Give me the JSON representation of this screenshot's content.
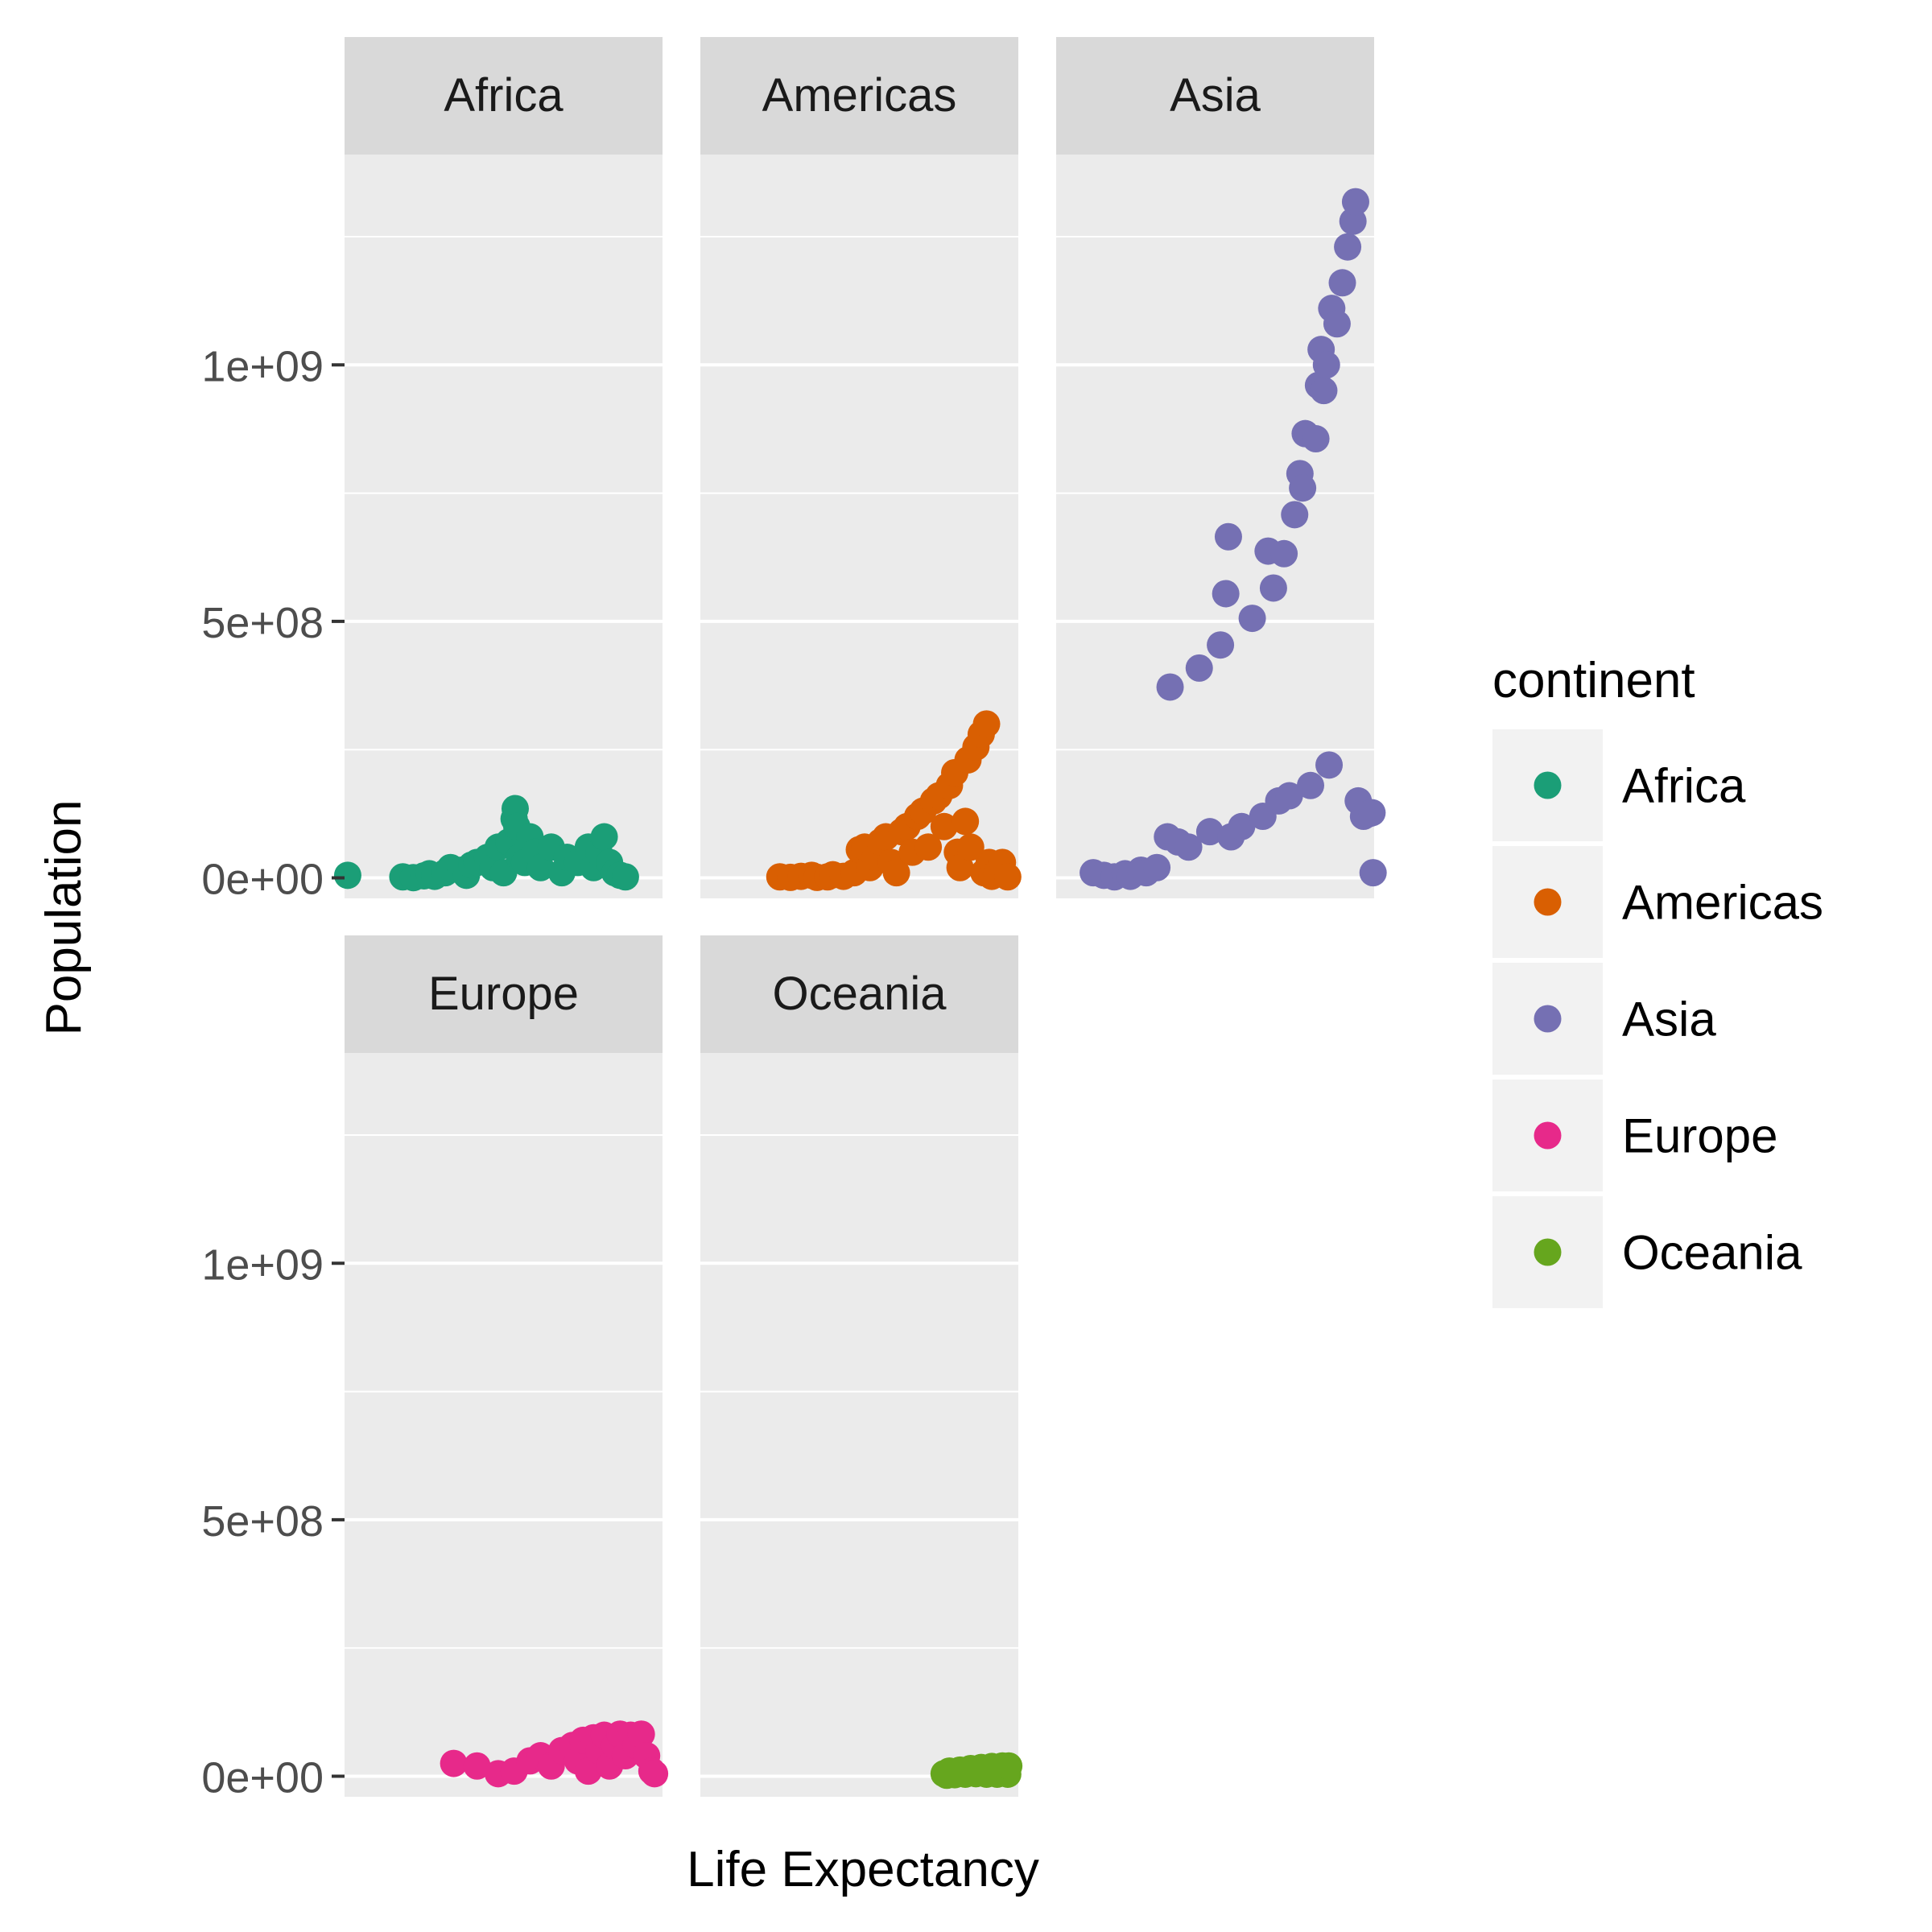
{
  "chart_data": {
    "type": "scatter",
    "xlabel": "Life Expectancy",
    "ylabel": "Population",
    "ylim": [
      -40000000,
      1410000000
    ],
    "xlim": [
      23,
      83
    ],
    "y_ticks": [
      {
        "value": 0,
        "label": "0e+00"
      },
      {
        "value": 500000000,
        "label": "5e+08"
      },
      {
        "value": 1000000000,
        "label": "1e+09"
      }
    ],
    "x_ticks_shown": false,
    "grid": true,
    "facets": [
      "Africa",
      "Americas",
      "Asia",
      "Europe",
      "Oceania"
    ],
    "legend": {
      "title": "continent",
      "placement": "right",
      "entries": [
        {
          "name": "Africa",
          "color": "#1B9E77"
        },
        {
          "name": "Americas",
          "color": "#D95F02"
        },
        {
          "name": "Asia",
          "color": "#7570B3"
        },
        {
          "name": "Europe",
          "color": "#E7298A"
        },
        {
          "name": "Oceania",
          "color": "#66A61E"
        }
      ]
    },
    "series": [
      {
        "name": "Africa",
        "color": "#1B9E77",
        "points": [
          [
            23.6,
            5000000
          ],
          [
            34,
            2000000
          ],
          [
            36,
            500000
          ],
          [
            38,
            4000000
          ],
          [
            39,
            8000000
          ],
          [
            40,
            3000000
          ],
          [
            42,
            10000000
          ],
          [
            43,
            20000000
          ],
          [
            45,
            15000000
          ],
          [
            46,
            5000000
          ],
          [
            47,
            25000000
          ],
          [
            48,
            30000000
          ],
          [
            50,
            40000000
          ],
          [
            51,
            20000000
          ],
          [
            52,
            60000000
          ],
          [
            53,
            10000000
          ],
          [
            54,
            70000000
          ],
          [
            55,
            115000000
          ],
          [
            55.2,
            135000000
          ],
          [
            55.5,
            100000000
          ],
          [
            56,
            40000000
          ],
          [
            57,
            30000000
          ],
          [
            58,
            80000000
          ],
          [
            59,
            50000000
          ],
          [
            60,
            20000000
          ],
          [
            62,
            60000000
          ],
          [
            64,
            10000000
          ],
          [
            65,
            40000000
          ],
          [
            67,
            30000000
          ],
          [
            69,
            60000000
          ],
          [
            70,
            20000000
          ],
          [
            71,
            50000000
          ],
          [
            72,
            80000000
          ],
          [
            73,
            30000000
          ],
          [
            74,
            10000000
          ],
          [
            75,
            5000000
          ],
          [
            76,
            2000000
          ]
        ]
      },
      {
        "name": "Americas",
        "color": "#D95F02",
        "points": [
          [
            38,
            2000000
          ],
          [
            40,
            1000000
          ],
          [
            42,
            3000000
          ],
          [
            44,
            5000000
          ],
          [
            45,
            1000000
          ],
          [
            47,
            2000000
          ],
          [
            48,
            6000000
          ],
          [
            50,
            3000000
          ],
          [
            52,
            10000000
          ],
          [
            53,
            55000000
          ],
          [
            54,
            60000000
          ],
          [
            55,
            20000000
          ],
          [
            56,
            40000000
          ],
          [
            57,
            70000000
          ],
          [
            58,
            80000000
          ],
          [
            59,
            30000000
          ],
          [
            60,
            10000000
          ],
          [
            61,
            90000000
          ],
          [
            62,
            100000000
          ],
          [
            63,
            50000000
          ],
          [
            64,
            120000000
          ],
          [
            65,
            130000000
          ],
          [
            66,
            60000000
          ],
          [
            67,
            150000000
          ],
          [
            68,
            160000000
          ],
          [
            69,
            100000000
          ],
          [
            70,
            180000000
          ],
          [
            71,
            205000000
          ],
          [
            71.5,
            50000000
          ],
          [
            72,
            20000000
          ],
          [
            73,
            110000000
          ],
          [
            73.5,
            230000000
          ],
          [
            74,
            60000000
          ],
          [
            75,
            255000000
          ],
          [
            76,
            280000000
          ],
          [
            76.5,
            10000000
          ],
          [
            77,
            300000000
          ],
          [
            77.5,
            30000000
          ],
          [
            78,
            3000000
          ],
          [
            79,
            10000000
          ],
          [
            80,
            30000000
          ],
          [
            81,
            2000000
          ]
        ]
      },
      {
        "name": "Asia",
        "color": "#7570B3",
        "points": [
          [
            30,
            10000000
          ],
          [
            32,
            5000000
          ],
          [
            34,
            2000000
          ],
          [
            36,
            8000000
          ],
          [
            37,
            3000000
          ],
          [
            39,
            15000000
          ],
          [
            40,
            10000000
          ],
          [
            42,
            20000000
          ],
          [
            44,
            80000000
          ],
          [
            44.5,
            372000000
          ],
          [
            46,
            70000000
          ],
          [
            48,
            60000000
          ],
          [
            50,
            409000000
          ],
          [
            52,
            90000000
          ],
          [
            54,
            454000000
          ],
          [
            55,
            554000000
          ],
          [
            55.5,
            665000000
          ],
          [
            56,
            80000000
          ],
          [
            58,
            100000000
          ],
          [
            60,
            506000000
          ],
          [
            62,
            120000000
          ],
          [
            63,
            637000000
          ],
          [
            64,
            565000000
          ],
          [
            65,
            150000000
          ],
          [
            66,
            632000000
          ],
          [
            67,
            160000000
          ],
          [
            68,
            708000000
          ],
          [
            69,
            788000000
          ],
          [
            69.5,
            760000000
          ],
          [
            70,
            866000000
          ],
          [
            71,
            180000000
          ],
          [
            72,
            856000000
          ],
          [
            72.5,
            960000000
          ],
          [
            73,
            1030000000
          ],
          [
            73.5,
            950000000
          ],
          [
            74,
            1000000000
          ],
          [
            74.5,
            220000000
          ],
          [
            75,
            1110000000
          ],
          [
            76,
            1080000000
          ],
          [
            77,
            1160000000
          ],
          [
            78,
            1230000000
          ],
          [
            79,
            1280000000
          ],
          [
            79.5,
            1318000000
          ],
          [
            80,
            150000000
          ],
          [
            81,
            120000000
          ],
          [
            82,
            125000000
          ],
          [
            82.6,
            127000000
          ],
          [
            82.8,
            10000000
          ]
        ]
      },
      {
        "name": "Europe",
        "color": "#E7298A",
        "points": [
          [
            43.6,
            25000000
          ],
          [
            48,
            20000000
          ],
          [
            52,
            5000000
          ],
          [
            55,
            10000000
          ],
          [
            58,
            30000000
          ],
          [
            60,
            40000000
          ],
          [
            62,
            20000000
          ],
          [
            64,
            50000000
          ],
          [
            66,
            60000000
          ],
          [
            67,
            30000000
          ],
          [
            68,
            70000000
          ],
          [
            69,
            10000000
          ],
          [
            70,
            75000000
          ],
          [
            71,
            50000000
          ],
          [
            72,
            80000000
          ],
          [
            73,
            20000000
          ],
          [
            74,
            60000000
          ],
          [
            75,
            82000000
          ],
          [
            76,
            40000000
          ],
          [
            77,
            80000000
          ],
          [
            78,
            60000000
          ],
          [
            79,
            82000000
          ],
          [
            80,
            40000000
          ],
          [
            81,
            10000000
          ],
          [
            81.5,
            5000000
          ]
        ]
      },
      {
        "name": "Oceania",
        "color": "#66A61E",
        "points": [
          [
            69,
            5000000
          ],
          [
            69.5,
            2000000
          ],
          [
            70,
            10000000
          ],
          [
            71,
            3000000
          ],
          [
            72,
            12000000
          ],
          [
            73,
            4000000
          ],
          [
            74,
            15000000
          ],
          [
            75,
            5000000
          ],
          [
            76,
            17000000
          ],
          [
            77,
            4000000
          ],
          [
            78,
            19000000
          ],
          [
            79,
            4000000
          ],
          [
            80,
            20000000
          ],
          [
            81,
            4000000
          ],
          [
            81.2,
            20000000
          ]
        ]
      }
    ]
  }
}
